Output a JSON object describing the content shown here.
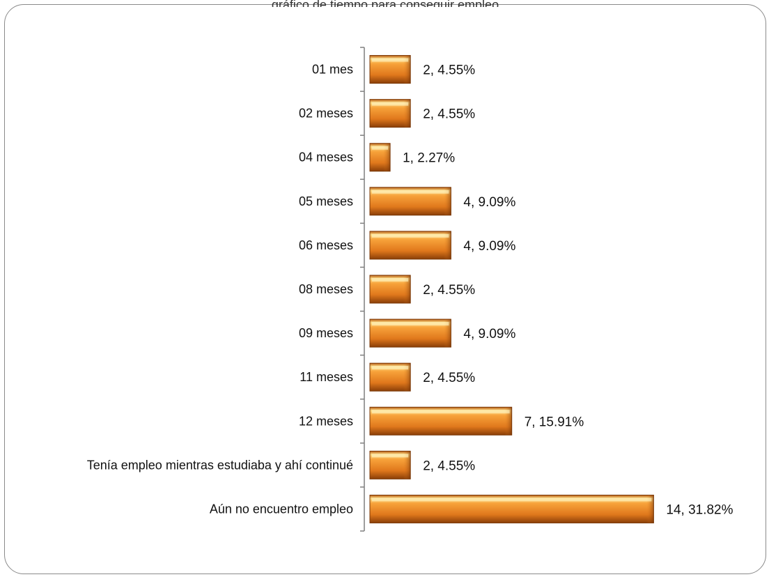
{
  "chart_data": {
    "type": "bar",
    "orientation": "horizontal",
    "title": "",
    "xlabel": "",
    "ylabel": "",
    "categories": [
      "01 mes",
      "02 meses",
      "04 meses",
      "05 meses",
      "06 meses",
      "08 meses",
      "09 meses",
      "11 meses",
      "12 meses",
      "Tenía empleo mientras estudiaba y ahí continué",
      "Aún no encuentro empleo"
    ],
    "series": [
      {
        "values": [
          2,
          2,
          1,
          4,
          4,
          2,
          4,
          2,
          7,
          2,
          14
        ],
        "percents": [
          "4.55%",
          "4.55%",
          "2.27%",
          "9.09%",
          "9.09%",
          "4.55%",
          "9.09%",
          "4.55%",
          "15.91%",
          "4.55%",
          "31.82%"
        ]
      }
    ],
    "data_labels": [
      "2, 4.55%",
      "2, 4.55%",
      "1, 2.27%",
      "4, 9.09%",
      "4, 9.09%",
      "2, 4.55%",
      "4, 9.09%",
      "2, 4.55%",
      "7, 15.91%",
      "2, 4.55%",
      "14, 31.82%"
    ],
    "grid": false,
    "legend": "none",
    "colors": {
      "bar": "#e0781c",
      "bar_light": "#ffd27a",
      "bar_dark": "#8a3f08",
      "axis": "#7f7f7f"
    }
  }
}
